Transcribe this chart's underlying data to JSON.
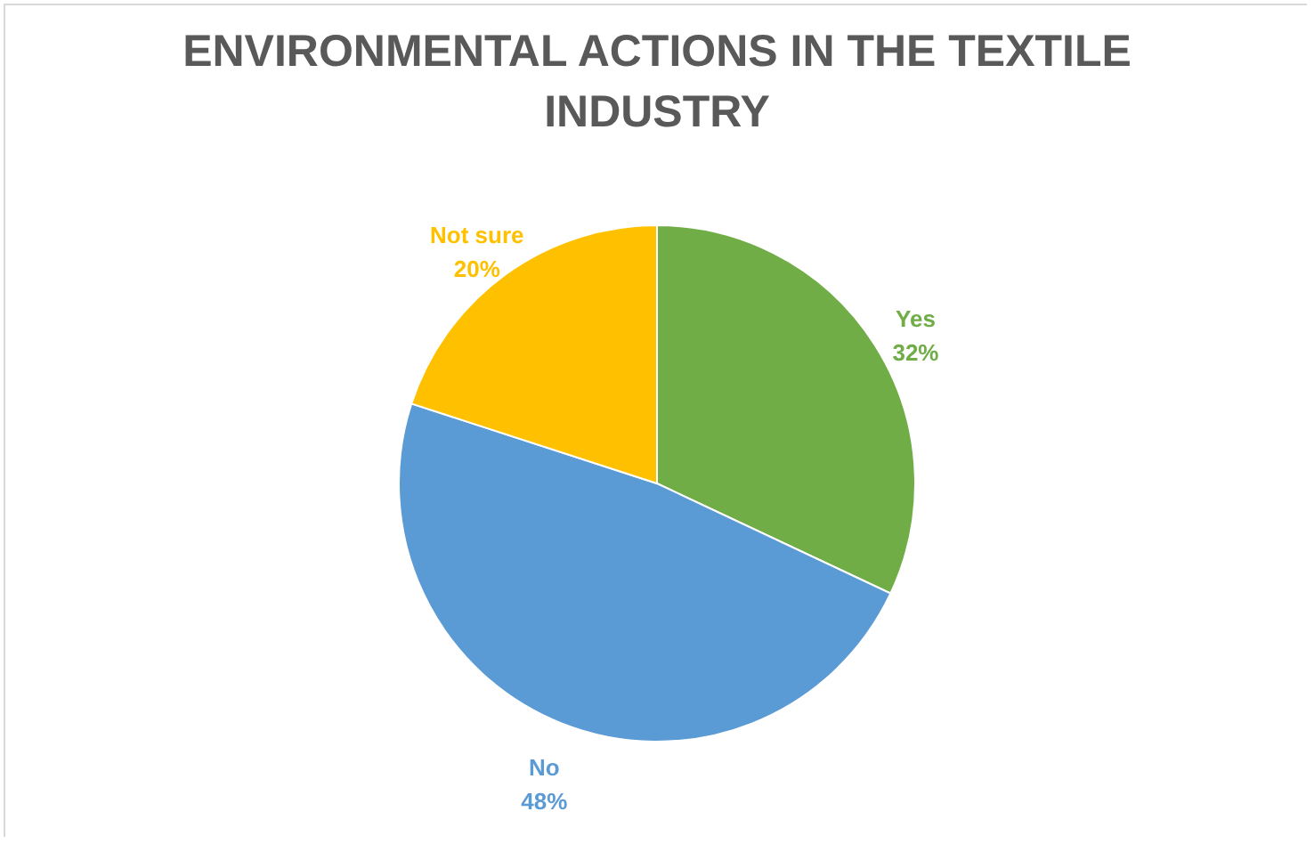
{
  "chart_data": {
    "type": "pie",
    "title": "ENVIRONMENTAL ACTIONS IN THE TEXTILE INDUSTRY",
    "categories": [
      "Yes",
      "No",
      "Not sure"
    ],
    "values": [
      32,
      48,
      20
    ],
    "colors": [
      "#70ad47",
      "#5b9bd5",
      "#ffc000"
    ],
    "value_labels": [
      "32%",
      "48%",
      "20%"
    ],
    "legend": false
  }
}
